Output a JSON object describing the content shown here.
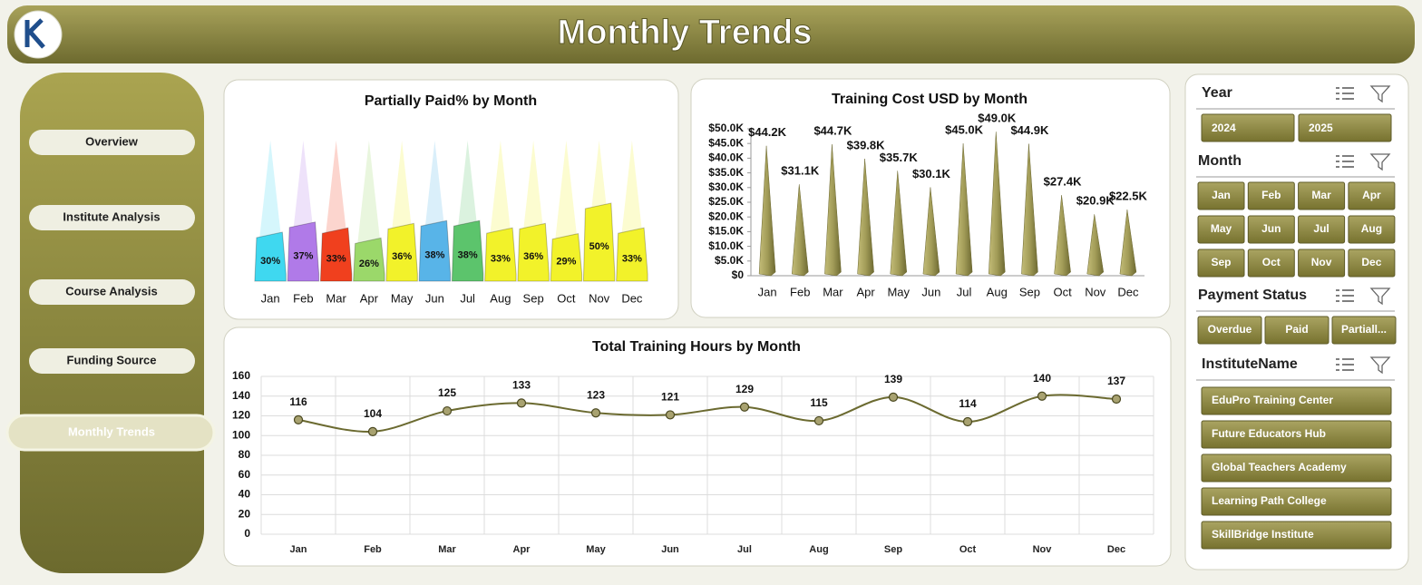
{
  "header": {
    "title": "Monthly Trends"
  },
  "nav": {
    "items": [
      "Overview",
      "Institute Analysis",
      "Course Analysis",
      "Funding Source",
      "Monthly Trends"
    ],
    "active": 4
  },
  "slicers": [
    {
      "title": "Year",
      "items": [
        "2024",
        "2025"
      ]
    },
    {
      "title": "Month",
      "items": [
        "Jan",
        "Feb",
        "Mar",
        "Apr",
        "May",
        "Jun",
        "Jul",
        "Aug",
        "Sep",
        "Oct",
        "Nov",
        "Dec"
      ]
    },
    {
      "title": "Payment Status",
      "items": [
        "Overdue",
        "Paid",
        "Partiall..."
      ]
    },
    {
      "title": "InstituteName",
      "items": [
        "EduPro Training Center",
        "Future Educators Hub",
        "Global Teachers Academy",
        "Learning Path College",
        "SkillBridge Institute"
      ]
    }
  ],
  "chart_data": [
    {
      "type": "bar",
      "title": "Partially Paid% by Month",
      "categories": [
        "Jan",
        "Feb",
        "Mar",
        "Apr",
        "May",
        "Jun",
        "Jul",
        "Aug",
        "Sep",
        "Oct",
        "Nov",
        "Dec"
      ],
      "values": [
        30,
        37,
        33,
        26,
        36,
        38,
        38,
        33,
        36,
        29,
        50,
        33
      ],
      "value_labels": [
        "30%",
        "37%",
        "33%",
        "26%",
        "36%",
        "38%",
        "38%",
        "33%",
        "36%",
        "29%",
        "50%",
        "33%"
      ],
      "colors": [
        "#3fd8f0",
        "#b07ae8",
        "#f0401e",
        "#9bd86a",
        "#f2f22a",
        "#58b4e8",
        "#5cc46c",
        "#f2f22a",
        "#f2f22a",
        "#f2f22a",
        "#f2f22a",
        "#f2f22a"
      ]
    },
    {
      "type": "cone",
      "title": "Training Cost USD by Month",
      "categories": [
        "Jan",
        "Feb",
        "Mar",
        "Apr",
        "May",
        "Jun",
        "Jul",
        "Aug",
        "Sep",
        "Oct",
        "Nov",
        "Dec"
      ],
      "values": [
        44200,
        31100,
        44700,
        39800,
        35700,
        30100,
        45000,
        49000,
        44900,
        27400,
        20900,
        22500
      ],
      "value_labels": [
        "$44.2K",
        "$31.1K",
        "$44.7K",
        "$39.8K",
        "$35.7K",
        "$30.1K",
        "$45.0K",
        "$49.0K",
        "$44.9K",
        "$27.4K",
        "$20.9K",
        "$22.5K"
      ],
      "color": "#a29c58",
      "ylim": [
        0,
        50000
      ],
      "yticks": [
        {
          "value": 0,
          "label": "$0"
        },
        {
          "value": 5000,
          "label": "$5.0K"
        },
        {
          "value": 10000,
          "label": "$10.0K"
        },
        {
          "value": 15000,
          "label": "$15.0K"
        },
        {
          "value": 20000,
          "label": "$20.0K"
        },
        {
          "value": 25000,
          "label": "$25.0K"
        },
        {
          "value": 30000,
          "label": "$30.0K"
        },
        {
          "value": 35000,
          "label": "$35.0K"
        },
        {
          "value": 40000,
          "label": "$40.0K"
        },
        {
          "value": 45000,
          "label": "$45.0K"
        },
        {
          "value": 50000,
          "label": "$50.0K"
        }
      ]
    },
    {
      "type": "line",
      "title": "Total Training Hours by Month",
      "categories": [
        "Jan",
        "Feb",
        "Mar",
        "Apr",
        "May",
        "Jun",
        "Jul",
        "Aug",
        "Sep",
        "Oct",
        "Nov",
        "Dec"
      ],
      "values": [
        116,
        104,
        125,
        133,
        123,
        121,
        129,
        115,
        139,
        114,
        140,
        137
      ],
      "color": "#6b6a30",
      "ylim": [
        0,
        160
      ],
      "yticks": [
        0,
        20,
        40,
        60,
        80,
        100,
        120,
        140,
        160
      ],
      "grid": true
    }
  ]
}
